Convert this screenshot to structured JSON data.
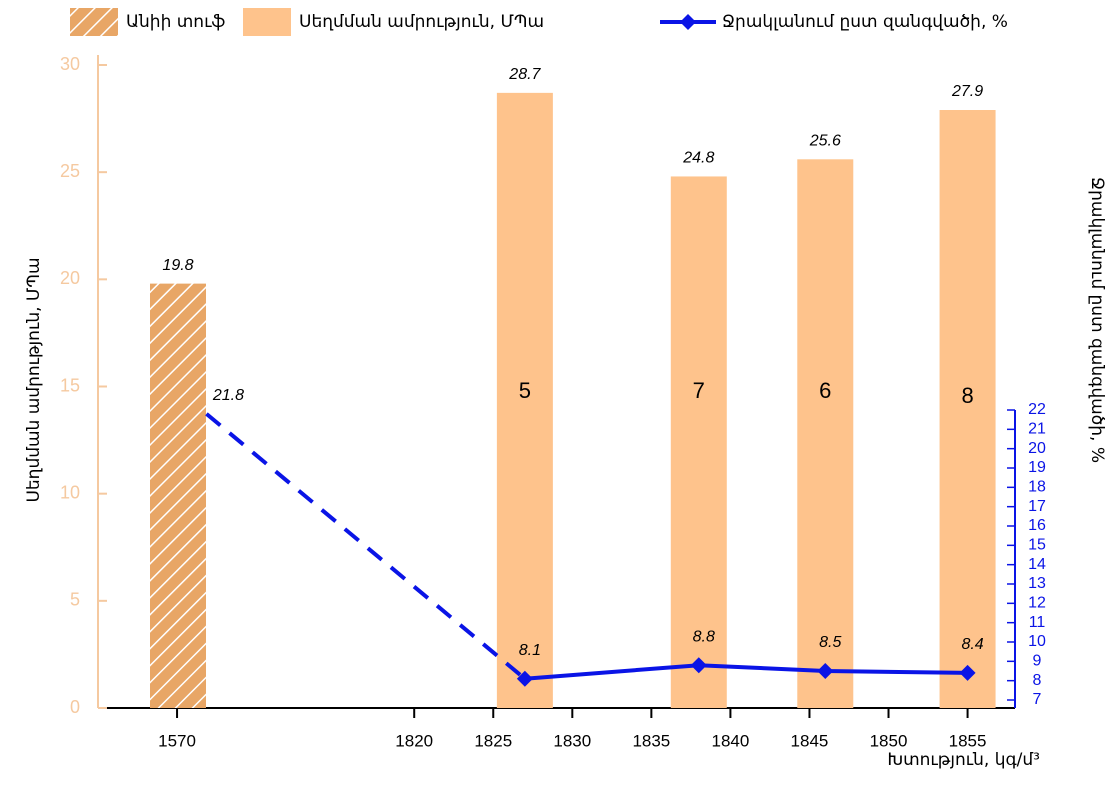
{
  "chart_data": {
    "type": "bar",
    "x_label": "Խտություն, կգ/մ³",
    "y_label": "Սեղմման ամրություն, ՄՊա",
    "y2_label": "Ջրակլանում ըստ զանգվածի, %",
    "xlim": [
      1565,
      1858
    ],
    "xticks": [
      1570,
      1820,
      1825,
      1830,
      1835,
      1840,
      1845,
      1850,
      1855
    ],
    "ylim": [
      0,
      30
    ],
    "yticks": [
      0,
      5,
      10,
      15,
      20,
      25,
      30
    ],
    "y2lim": [
      7,
      22
    ],
    "y2ticks": [
      7,
      8,
      9,
      10,
      11,
      12,
      13,
      14,
      15,
      16,
      17,
      18,
      19,
      20,
      21,
      22
    ],
    "series": [
      {
        "name": "Անիի տուֆ",
        "type": "bar",
        "color": "#e8a666",
        "hatch": true,
        "x": [
          1571
        ],
        "values": [
          19.8
        ]
      },
      {
        "name": "Սեղմման ամրություն, ՄՊա",
        "type": "bar",
        "color": "#fec38c",
        "x": [
          1827,
          1838,
          1846,
          1855
        ],
        "values": [
          28.7,
          24.8,
          25.6,
          27.9
        ],
        "inner_labels": [
          5,
          7,
          6,
          8
        ]
      },
      {
        "name": "Ջրակլանում ըստ զանգվածի, %",
        "type": "line",
        "axis": "y2",
        "color": "#0a14e6",
        "x": [
          1601,
          1827,
          1838,
          1846,
          1855
        ],
        "values": [
          21.8,
          8.1,
          8.8,
          8.5,
          8.4
        ],
        "dashed_segments": [
          0
        ]
      }
    ]
  }
}
